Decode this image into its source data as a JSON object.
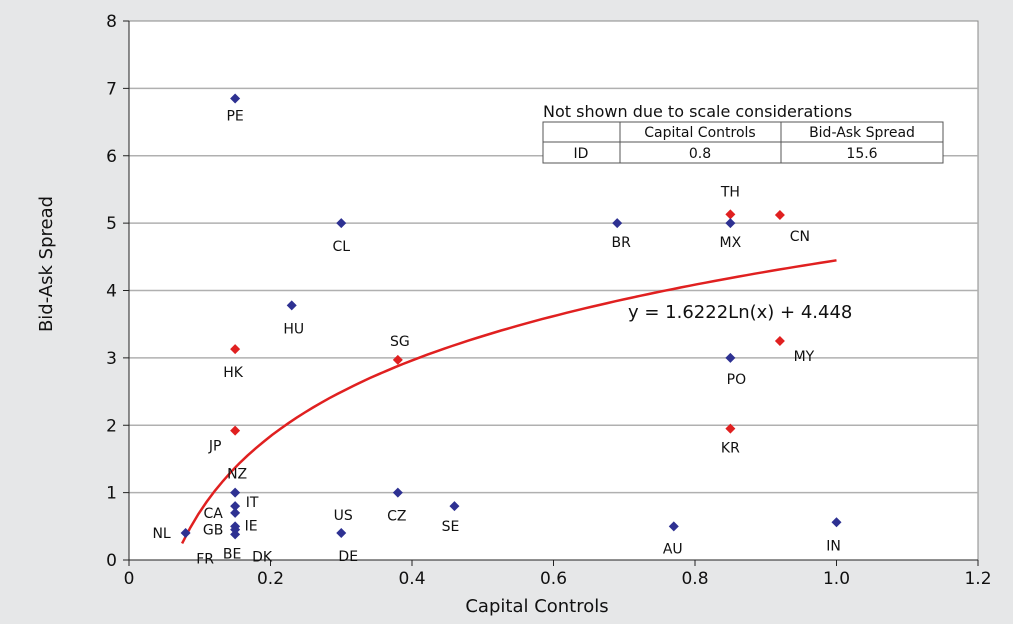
{
  "chart_data": {
    "type": "scatter",
    "xlabel": "Capital Controls",
    "ylabel": "Bid-Ask Spread",
    "xlim": [
      0,
      1.2
    ],
    "ylim": [
      0,
      8
    ],
    "xticks": [
      "0",
      "0.2",
      "0.4",
      "0.6",
      "0.8",
      "1.0",
      "1.2"
    ],
    "yticks": [
      "0",
      "1",
      "2",
      "3",
      "4",
      "5",
      "6",
      "7",
      "8"
    ],
    "grid": "horizontal",
    "colors": {
      "blue": "#2e3192",
      "red": "#e02020",
      "trend": "#e02020"
    },
    "points": [
      {
        "label": "PE",
        "x": 0.15,
        "y": 6.85,
        "color": "blue"
      },
      {
        "label": "CL",
        "x": 0.3,
        "y": 5.0,
        "color": "blue"
      },
      {
        "label": "BR",
        "x": 0.69,
        "y": 5.0,
        "color": "blue"
      },
      {
        "label": "TH",
        "x": 0.85,
        "y": 5.13,
        "color": "red"
      },
      {
        "label": "MX",
        "x": 0.85,
        "y": 5.0,
        "color": "blue"
      },
      {
        "label": "CN",
        "x": 0.92,
        "y": 5.12,
        "color": "red"
      },
      {
        "label": "HU",
        "x": 0.23,
        "y": 3.78,
        "color": "blue"
      },
      {
        "label": "HK",
        "x": 0.15,
        "y": 3.13,
        "color": "red"
      },
      {
        "label": "SG",
        "x": 0.38,
        "y": 2.97,
        "color": "red"
      },
      {
        "label": "PO",
        "x": 0.85,
        "y": 3.0,
        "color": "blue"
      },
      {
        "label": "MY",
        "x": 0.92,
        "y": 3.25,
        "color": "red"
      },
      {
        "label": "JP",
        "x": 0.15,
        "y": 1.92,
        "color": "red"
      },
      {
        "label": "KR",
        "x": 0.85,
        "y": 1.95,
        "color": "red"
      },
      {
        "label": "NZ",
        "x": 0.15,
        "y": 1.0,
        "color": "blue"
      },
      {
        "label": "CZ",
        "x": 0.38,
        "y": 1.0,
        "color": "blue"
      },
      {
        "label": "IT",
        "x": 0.15,
        "y": 0.8,
        "color": "blue"
      },
      {
        "label": "CA",
        "x": 0.15,
        "y": 0.7,
        "color": "blue"
      },
      {
        "label": "SE",
        "x": 0.46,
        "y": 0.8,
        "color": "blue"
      },
      {
        "label": "IE",
        "x": 0.15,
        "y": 0.5,
        "color": "blue"
      },
      {
        "label": "GB",
        "x": 0.15,
        "y": 0.45,
        "color": "blue"
      },
      {
        "label": "BE",
        "x": 0.15,
        "y": 0.38,
        "color": "blue"
      },
      {
        "label": "NL",
        "x": 0.08,
        "y": 0.4,
        "color": "blue"
      },
      {
        "label": "US",
        "x": 0.3,
        "y": 0.4,
        "color": "blue"
      },
      {
        "label": "AU",
        "x": 0.77,
        "y": 0.5,
        "color": "blue"
      },
      {
        "label": "IN",
        "x": 1.0,
        "y": 0.56,
        "color": "blue"
      },
      {
        "label": "FR",
        "x": null,
        "y": null,
        "color": "blue"
      },
      {
        "label": "DK",
        "x": null,
        "y": null,
        "color": "blue"
      },
      {
        "label": "DE",
        "x": null,
        "y": null,
        "color": "blue"
      }
    ],
    "trendline": {
      "equation": "y = 1.6222Ln(x) + 4.448",
      "a": 1.6222,
      "b": 4.448,
      "x_range": [
        0.075,
        1.0
      ]
    },
    "inset_table": {
      "title": "Not shown due to scale considerations",
      "headers": [
        "",
        "Capital Controls",
        "Bid-Ask Spread"
      ],
      "rows": [
        [
          "ID",
          "0.8",
          "15.6"
        ]
      ]
    }
  }
}
